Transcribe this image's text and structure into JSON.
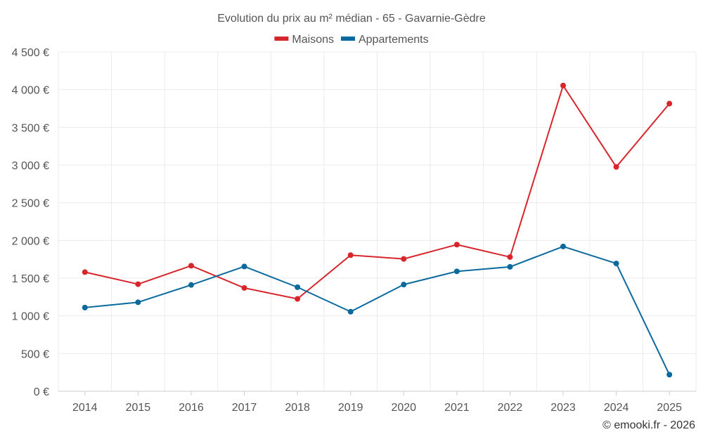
{
  "chart_data": {
    "type": "line",
    "title": "Evolution du prix au m² médian - 65 - Gavarnie-Gèdre",
    "categories": [
      "2014",
      "2015",
      "2016",
      "2017",
      "2018",
      "2019",
      "2020",
      "2021",
      "2022",
      "2023",
      "2024",
      "2025"
    ],
    "series": [
      {
        "name": "Maisons",
        "color": "#d7262b",
        "values": [
          1580,
          1420,
          1665,
          1370,
          1225,
          1805,
          1755,
          1945,
          1780,
          4055,
          2975,
          3815
        ]
      },
      {
        "name": "Appartements",
        "color": "#0a6a9e",
        "values": [
          1110,
          1180,
          1410,
          1655,
          1380,
          1055,
          1415,
          1590,
          1650,
          1920,
          1695,
          220
        ]
      }
    ],
    "ylim": [
      0,
      4500
    ],
    "yticks": [
      0,
      500,
      1000,
      1500,
      2000,
      2500,
      3000,
      3500,
      4000,
      4500
    ],
    "ytick_labels": [
      "0 €",
      "500 €",
      "1 000 €",
      "1 500 €",
      "2 000 €",
      "2 500 €",
      "3 000 €",
      "3 500 €",
      "4 000 €",
      "4 500 €"
    ],
    "legend_position": "top-center",
    "grid": true
  },
  "credit": "© emooki.fr - 2026"
}
